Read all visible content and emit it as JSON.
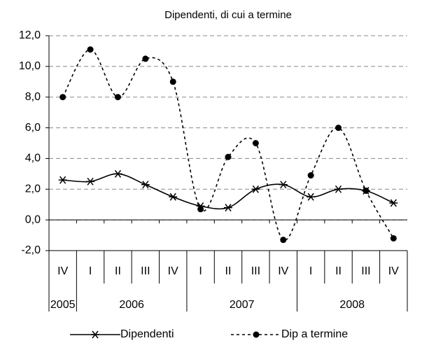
{
  "chart_data": {
    "type": "line",
    "title": "Dipendenti, di cui a  termine",
    "categories": [
      {
        "quarter": "IV",
        "year": "2005"
      },
      {
        "quarter": "I",
        "year": "2006"
      },
      {
        "quarter": "II",
        "year": "2006"
      },
      {
        "quarter": "III",
        "year": "2006"
      },
      {
        "quarter": "IV",
        "year": "2006"
      },
      {
        "quarter": "I",
        "year": "2007"
      },
      {
        "quarter": "II",
        "year": "2007"
      },
      {
        "quarter": "III",
        "year": "2007"
      },
      {
        "quarter": "IV",
        "year": "2007"
      },
      {
        "quarter": "I",
        "year": "2008"
      },
      {
        "quarter": "II",
        "year": "2008"
      },
      {
        "quarter": "III",
        "year": "2008"
      },
      {
        "quarter": "IV",
        "year": "2008"
      }
    ],
    "series": [
      {
        "name": "Dipendenti",
        "color": "#000000",
        "marker": "star",
        "dash": false,
        "values": [
          2.6,
          2.5,
          3.0,
          2.3,
          1.5,
          0.9,
          0.8,
          2.0,
          2.3,
          1.5,
          2.0,
          1.9,
          1.1
        ]
      },
      {
        "name": "Dip a termine",
        "color": "#000000",
        "marker": "circle",
        "dash": true,
        "values": [
          8.0,
          11.1,
          8.0,
          10.5,
          9.0,
          0.7,
          4.1,
          5.0,
          -1.3,
          2.9,
          6.0,
          1.9,
          -1.2
        ]
      }
    ],
    "ylim": [
      -2,
      12
    ],
    "yticks": [
      {
        "value": -2,
        "label": "-2,0"
      },
      {
        "value": 0,
        "label": "0,0"
      },
      {
        "value": 2,
        "label": "2,0"
      },
      {
        "value": 4,
        "label": "4,0"
      },
      {
        "value": 6,
        "label": "6,0"
      },
      {
        "value": 8,
        "label": "8,0"
      },
      {
        "value": 10,
        "label": "10,0"
      },
      {
        "value": 12,
        "label": "12,0"
      }
    ],
    "grid": true,
    "smooth": true,
    "legend": "bottom"
  }
}
